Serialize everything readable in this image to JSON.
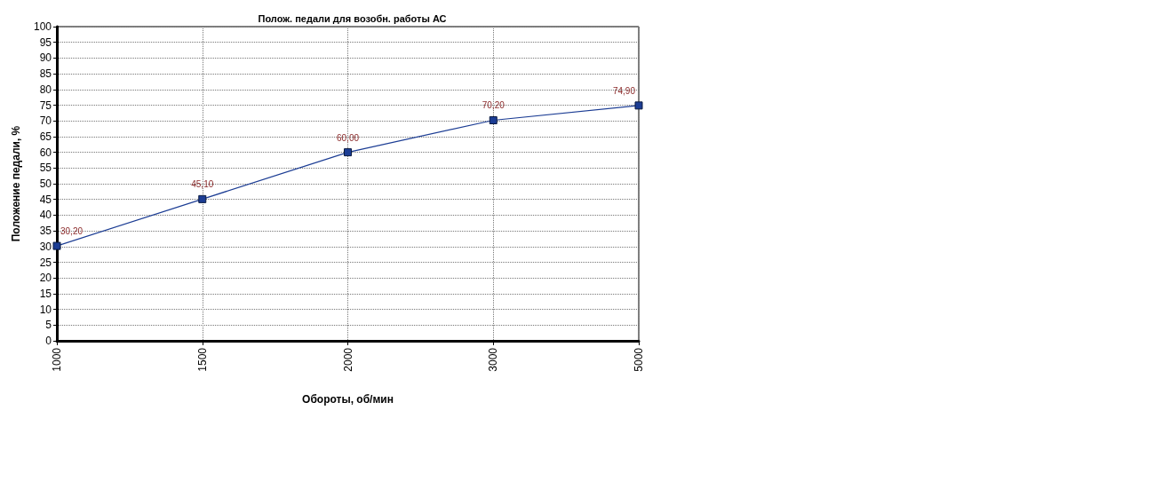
{
  "chart_data": {
    "type": "line",
    "title": "Полож. педали для возобн. работы АС",
    "xlabel": "Обороты, об/мин",
    "ylabel": "Положение педали, %",
    "categories": [
      "1000",
      "1500",
      "2000",
      "3000",
      "5000"
    ],
    "series": [
      {
        "color": "#1c3d94",
        "values": [
          30.2,
          45.1,
          60.0,
          70.2,
          74.9
        ],
        "value_labels": [
          "30,20",
          "45,10",
          "60,00",
          "70,20",
          "74,90"
        ]
      }
    ],
    "ylim": [
      0,
      100
    ],
    "yticks": [
      0,
      5,
      10,
      15,
      20,
      25,
      30,
      35,
      40,
      45,
      50,
      55,
      60,
      65,
      70,
      75,
      80,
      85,
      90,
      95,
      100
    ],
    "grid": true,
    "marker": "square",
    "line_style": "solid"
  }
}
